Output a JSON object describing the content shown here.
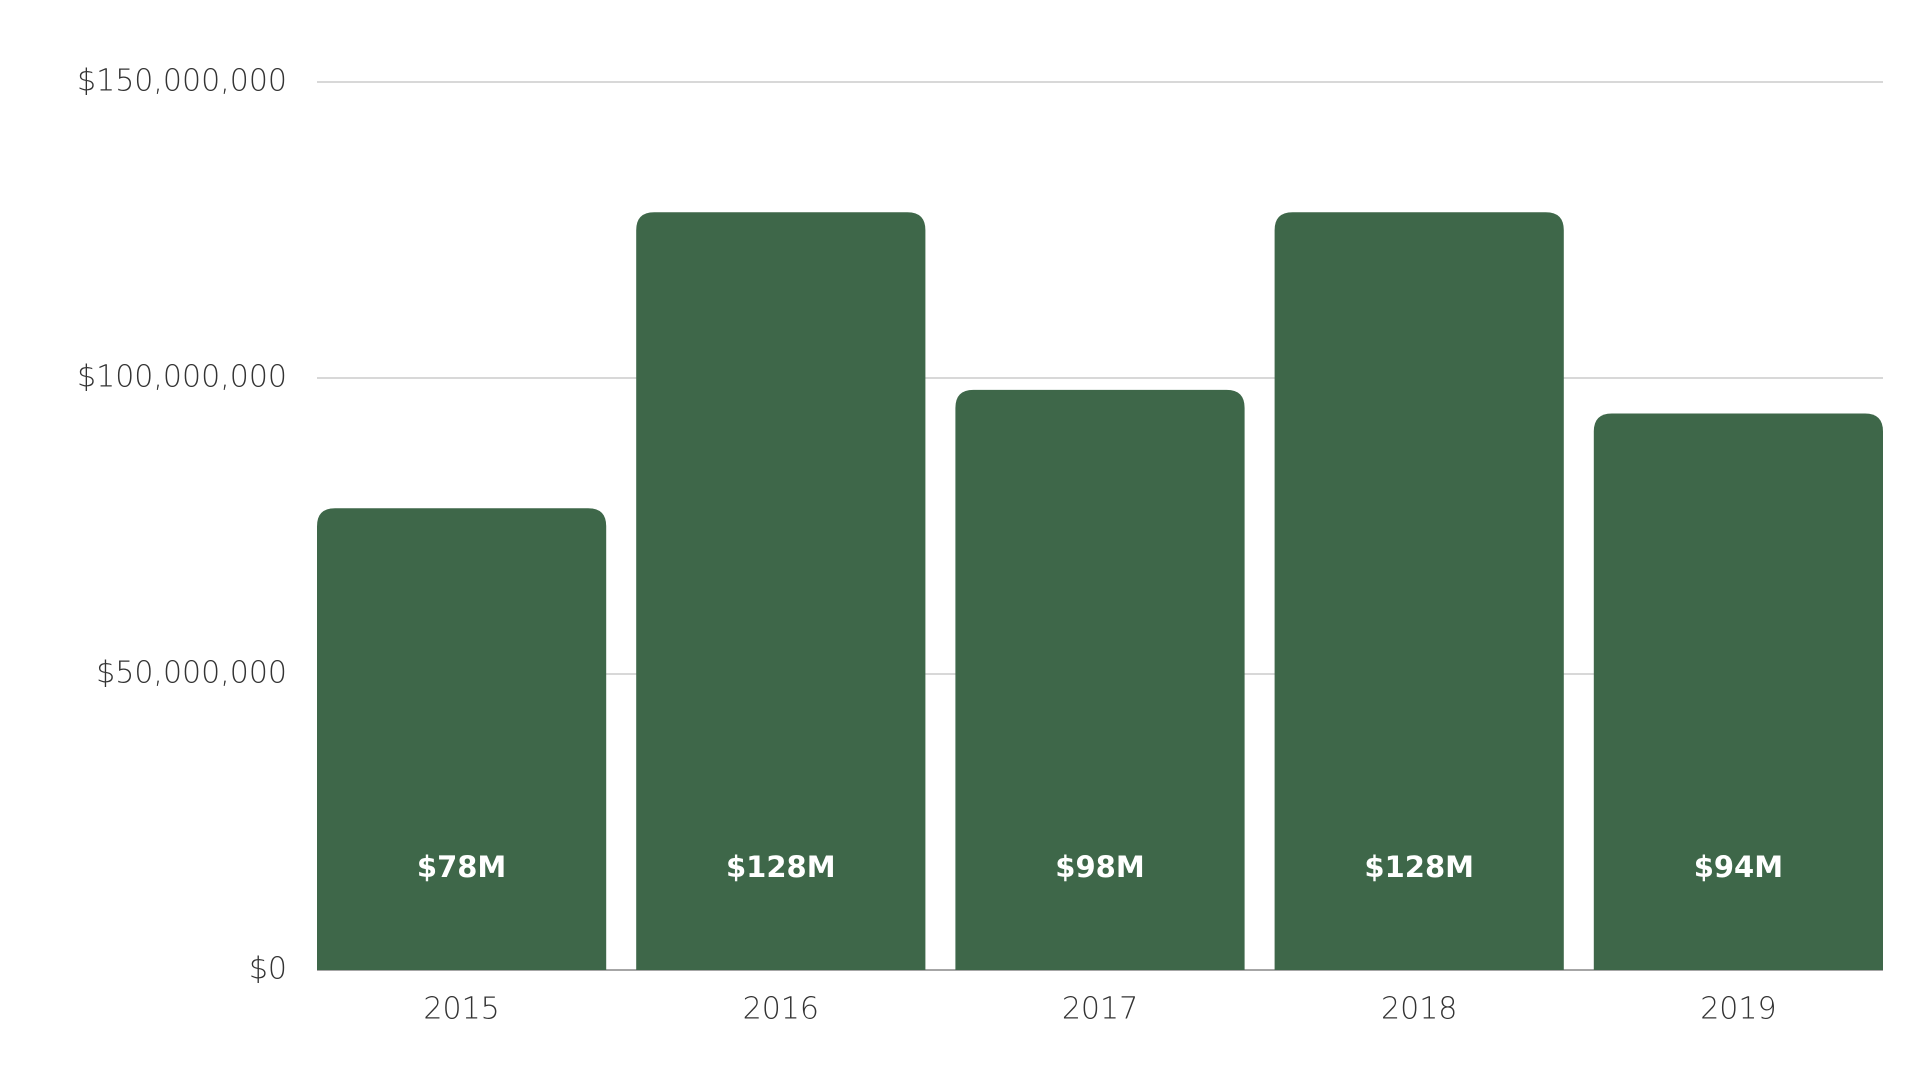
{
  "chart_data": {
    "type": "bar",
    "categories": [
      "2015",
      "2016",
      "2017",
      "2018",
      "2019"
    ],
    "values": [
      78000000,
      128000000,
      98000000,
      128000000,
      94000000
    ],
    "value_labels": [
      "$78M",
      "$128M",
      "$98M",
      "$128M",
      "$94M"
    ],
    "color": "#3e6749",
    "ylim": [
      0,
      150000000
    ],
    "yticks": [
      {
        "value": 0,
        "label": "$0"
      },
      {
        "value": 50000000,
        "label": "$50,000,000"
      },
      {
        "value": 100000000,
        "label": "$100,000,000"
      },
      {
        "value": 150000000,
        "label": "$150,000,000"
      }
    ],
    "grid": true
  }
}
